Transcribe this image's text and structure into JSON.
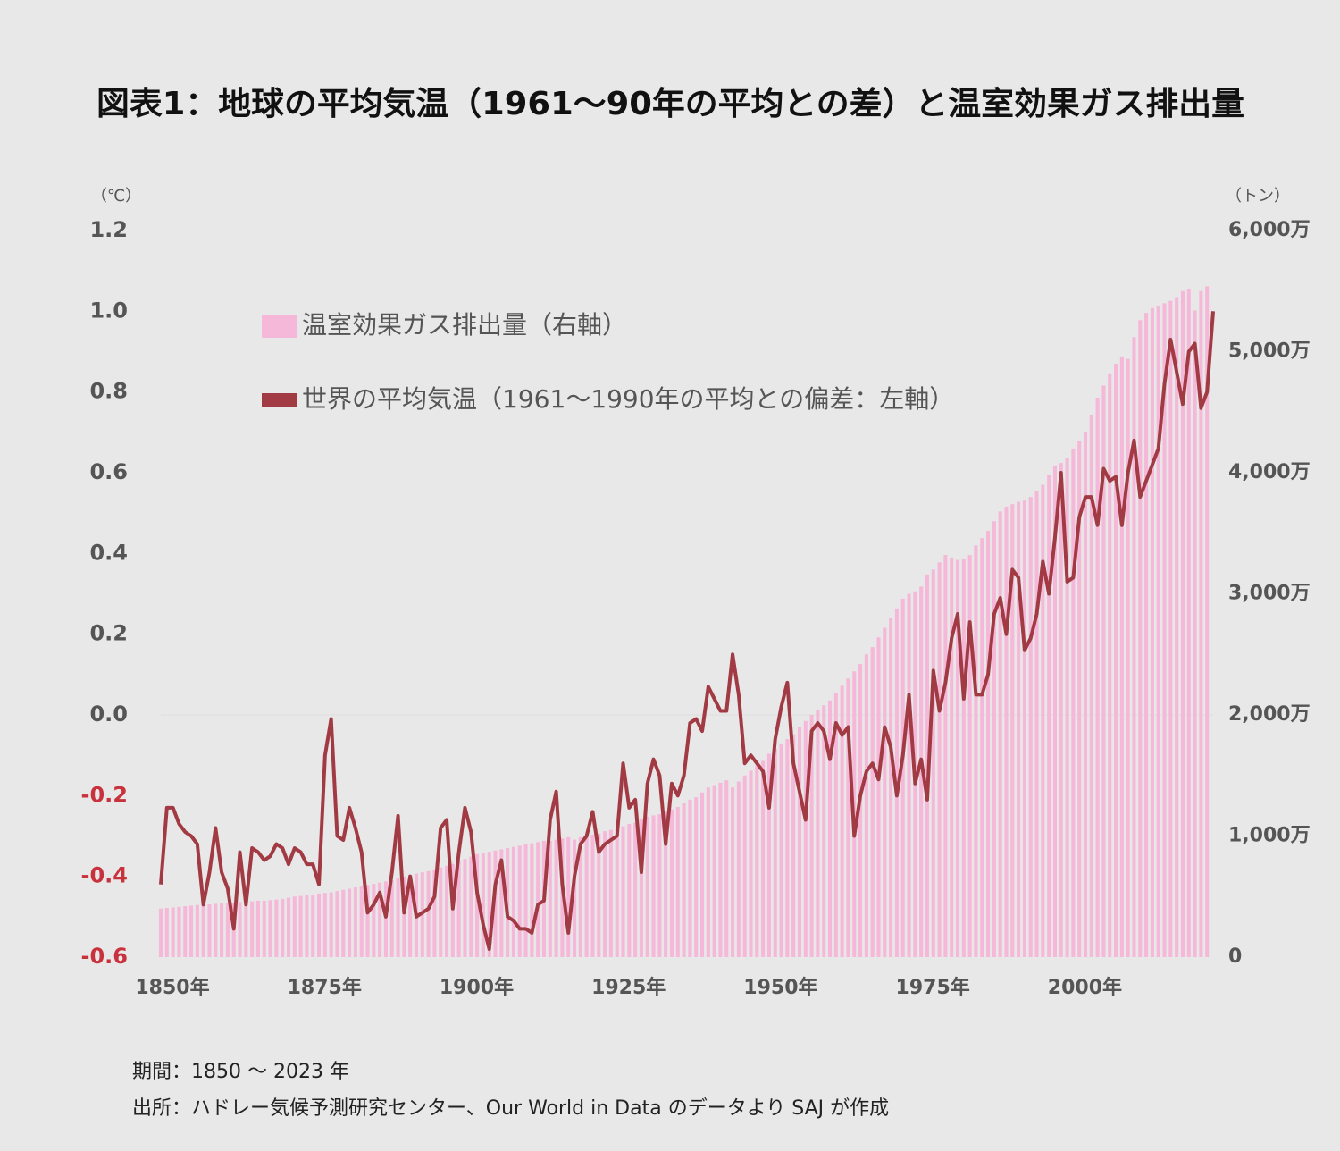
{
  "chart_data": {
    "type": "combo",
    "title": "図表1：地球の平均気温（1961～90年の平均との差）と温室効果ガス排出量",
    "y_label": "（℃）",
    "y2_label": "（トン）",
    "x": [
      1850,
      1851,
      1852,
      1853,
      1854,
      1855,
      1856,
      1857,
      1858,
      1859,
      1860,
      1861,
      1862,
      1863,
      1864,
      1865,
      1866,
      1867,
      1868,
      1869,
      1870,
      1871,
      1872,
      1873,
      1874,
      1875,
      1876,
      1877,
      1878,
      1879,
      1880,
      1881,
      1882,
      1883,
      1884,
      1885,
      1886,
      1887,
      1888,
      1889,
      1890,
      1891,
      1892,
      1893,
      1894,
      1895,
      1896,
      1897,
      1898,
      1899,
      1900,
      1901,
      1902,
      1903,
      1904,
      1905,
      1906,
      1907,
      1908,
      1909,
      1910,
      1911,
      1912,
      1913,
      1914,
      1915,
      1916,
      1917,
      1918,
      1919,
      1920,
      1921,
      1922,
      1923,
      1924,
      1925,
      1926,
      1927,
      1928,
      1929,
      1930,
      1931,
      1932,
      1933,
      1934,
      1935,
      1936,
      1937,
      1938,
      1939,
      1940,
      1941,
      1942,
      1943,
      1944,
      1945,
      1946,
      1947,
      1948,
      1949,
      1950,
      1951,
      1952,
      1953,
      1954,
      1955,
      1956,
      1957,
      1958,
      1959,
      1960,
      1961,
      1962,
      1963,
      1964,
      1965,
      1966,
      1967,
      1968,
      1969,
      1970,
      1971,
      1972,
      1973,
      1974,
      1975,
      1976,
      1977,
      1978,
      1979,
      1980,
      1981,
      1982,
      1983,
      1984,
      1985,
      1986,
      1987,
      1988,
      1989,
      1990,
      1991,
      1992,
      1993,
      1994,
      1995,
      1996,
      1997,
      1998,
      1999,
      2000,
      2001,
      2002,
      2003,
      2004,
      2005,
      2006,
      2007,
      2008,
      2009,
      2010,
      2011,
      2012,
      2013,
      2014,
      2015,
      2016,
      2017,
      2018,
      2019,
      2020,
      2021,
      2022,
      2023
    ],
    "xlim": [
      1850,
      2023
    ],
    "xticks": [
      {
        "value": 1850,
        "label": "1850年"
      },
      {
        "value": 1875,
        "label": "1875年"
      },
      {
        "value": 1900,
        "label": "1900年"
      },
      {
        "value": 1925,
        "label": "1925年"
      },
      {
        "value": 1950,
        "label": "1950年"
      },
      {
        "value": 1975,
        "label": "1975年"
      },
      {
        "value": 2000,
        "label": "2000年"
      }
    ],
    "ylim": [
      -0.6,
      1.2
    ],
    "yticks": [
      -0.6,
      -0.4,
      -0.2,
      {
        "value": 0,
        "label": "0.0"
      },
      0.2,
      0.4,
      0.6,
      0.8,
      {
        "value": 1,
        "label": "1.0"
      },
      1.2
    ],
    "negative_tick_color": "#c8323c",
    "y2lim": [
      0,
      60000000
    ],
    "y2ticks": [
      0,
      {
        "value": 10000000,
        "label": "1,000万"
      },
      {
        "value": 20000000,
        "label": "2,000万"
      },
      {
        "value": 30000000,
        "label": "3,000万"
      },
      {
        "value": 40000000,
        "label": "4,000万"
      },
      {
        "value": 50000000,
        "label": "5,000万"
      },
      {
        "value": 60000000,
        "label": "6,000万"
      }
    ],
    "series": [
      {
        "name": "温室効果ガス排出量（右軸）",
        "type": "bar",
        "axis": "y2",
        "color": "#f6b8d8",
        "values": [
          4000000,
          4050000,
          4100000,
          4150000,
          4200000,
          4250000,
          4300000,
          4400000,
          4350000,
          4400000,
          4450000,
          4500000,
          4500000,
          4550000,
          4600000,
          4600000,
          4650000,
          4650000,
          4700000,
          4750000,
          4800000,
          4900000,
          5000000,
          5050000,
          5100000,
          5150000,
          5250000,
          5300000,
          5350000,
          5450000,
          5550000,
          5650000,
          5750000,
          5850000,
          5950000,
          6050000,
          6150000,
          6250000,
          6350000,
          6500000,
          6650000,
          6800000,
          6900000,
          7000000,
          7100000,
          7250000,
          7400000,
          7550000,
          7700000,
          7900000,
          8100000,
          8300000,
          8500000,
          8600000,
          8700000,
          8800000,
          8900000,
          9000000,
          9100000,
          9200000,
          9300000,
          9400000,
          9500000,
          9600000,
          9600000,
          9700000,
          9800000,
          9900000,
          9700000,
          9900000,
          10000000,
          10100000,
          10200000,
          10400000,
          10500000,
          10600000,
          10800000,
          11000000,
          11100000,
          11400000,
          11600000,
          11700000,
          11800000,
          12000000,
          12200000,
          12400000,
          12700000,
          13000000,
          13200000,
          13600000,
          14000000,
          14200000,
          14400000,
          14600000,
          14000000,
          14500000,
          15000000,
          15400000,
          15800000,
          16200000,
          16800000,
          17200000,
          17600000,
          18000000,
          18400000,
          19000000,
          19500000,
          20000000,
          20400000,
          20800000,
          21200000,
          21800000,
          22400000,
          23000000,
          23600000,
          24200000,
          25000000,
          25600000,
          26400000,
          27200000,
          28000000,
          28800000,
          29600000,
          30000000,
          30200000,
          30600000,
          31600000,
          32000000,
          32600000,
          33200000,
          33000000,
          32800000,
          32900000,
          33200000,
          34000000,
          34600000,
          35200000,
          36000000,
          36800000,
          37200000,
          37400000,
          37600000,
          37700000,
          38000000,
          38500000,
          39000000,
          39800000,
          40600000,
          40800000,
          41200000,
          42000000,
          42600000,
          43400000,
          44800000,
          46200000,
          47200000,
          48200000,
          49000000,
          49600000,
          49400000,
          51200000,
          52600000,
          53200000,
          53600000,
          53800000,
          54000000,
          54200000,
          54500000,
          55000000,
          55200000,
          53400000,
          55000000,
          55400000,
          null
        ]
      },
      {
        "name": "世界の平均気温（1961～1990年の平均との偏差：左軸）",
        "type": "line",
        "axis": "y",
        "color": "#a23a44",
        "values": [
          -0.42,
          -0.23,
          -0.23,
          -0.27,
          -0.29,
          -0.3,
          -0.32,
          -0.47,
          -0.39,
          -0.28,
          -0.39,
          -0.43,
          -0.53,
          -0.34,
          -0.47,
          -0.33,
          -0.34,
          -0.36,
          -0.35,
          -0.32,
          -0.33,
          -0.37,
          -0.33,
          -0.34,
          -0.37,
          -0.37,
          -0.42,
          -0.1,
          -0.01,
          -0.3,
          -0.31,
          -0.23,
          -0.28,
          -0.34,
          -0.49,
          -0.47,
          -0.44,
          -0.5,
          -0.39,
          -0.25,
          -0.49,
          -0.4,
          -0.5,
          -0.49,
          -0.48,
          -0.45,
          -0.28,
          -0.26,
          -0.48,
          -0.34,
          -0.23,
          -0.29,
          -0.44,
          -0.52,
          -0.58,
          -0.42,
          -0.36,
          -0.5,
          -0.51,
          -0.53,
          -0.53,
          -0.54,
          -0.47,
          -0.46,
          -0.26,
          -0.19,
          -0.42,
          -0.54,
          -0.4,
          -0.32,
          -0.3,
          -0.24,
          -0.34,
          -0.32,
          -0.31,
          -0.3,
          -0.12,
          -0.23,
          -0.21,
          -0.39,
          -0.17,
          -0.11,
          -0.15,
          -0.32,
          -0.17,
          -0.2,
          -0.15,
          -0.02,
          -0.01,
          -0.04,
          0.07,
          0.04,
          0.01,
          0.01,
          0.15,
          0.05,
          -0.12,
          -0.1,
          -0.12,
          -0.14,
          -0.23,
          -0.06,
          0.02,
          0.08,
          -0.12,
          -0.19,
          -0.26,
          -0.04,
          -0.02,
          -0.04,
          -0.11,
          -0.02,
          -0.05,
          -0.03,
          -0.3,
          -0.2,
          -0.14,
          -0.12,
          -0.16,
          -0.03,
          -0.08,
          -0.2,
          -0.1,
          0.05,
          -0.17,
          -0.11,
          -0.21,
          0.11,
          0.01,
          0.08,
          0.19,
          0.25,
          0.04,
          0.23,
          0.05,
          0.05,
          0.1,
          0.25,
          0.29,
          0.2,
          0.36,
          0.34,
          0.16,
          0.19,
          0.25,
          0.38,
          0.3,
          0.44,
          0.6,
          0.33,
          0.34,
          0.49,
          0.54,
          0.54,
          0.47,
          0.61,
          0.58,
          0.59,
          0.47,
          0.6,
          0.68,
          0.54,
          0.58,
          0.62,
          0.66,
          0.82,
          0.93,
          0.85,
          0.77,
          0.9,
          0.92,
          0.76,
          0.8,
          1.0
        ]
      }
    ],
    "notes": [
      "期間：1850 ～ 2023 年",
      "出所：ハドレー気候予測研究センター、Our World in Data のデータより SAJ が作成"
    ]
  }
}
